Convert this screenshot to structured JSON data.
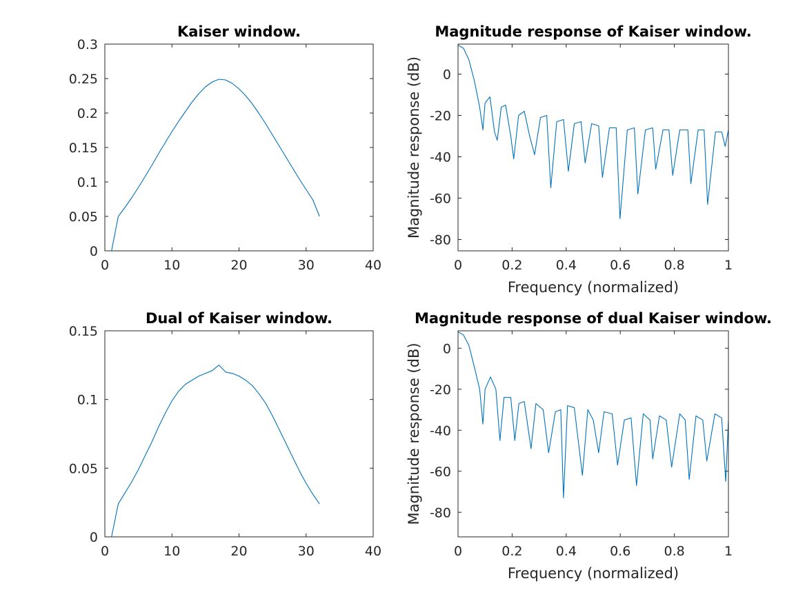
{
  "chart_data": [
    {
      "type": "line",
      "title": "Kaiser window.",
      "xlabel": "",
      "ylabel": "",
      "xlim": [
        0,
        40
      ],
      "ylim": [
        0,
        0.3
      ],
      "xticks": [
        0,
        10,
        20,
        30,
        40
      ],
      "xtick_labels": [
        "0",
        "10",
        "20",
        "30",
        "40"
      ],
      "yticks": [
        0,
        0.05,
        0.1,
        0.15,
        0.2,
        0.25,
        0.3
      ],
      "ytick_labels": [
        "0",
        "0.05",
        "0.1",
        "0.15",
        "0.2",
        "0.25",
        "0.3"
      ],
      "grid": false,
      "color": "#0072bd",
      "series": [
        {
          "x": [
            1,
            2,
            3,
            4,
            5,
            6,
            7,
            8,
            9,
            10,
            11,
            12,
            13,
            14,
            15,
            16,
            17,
            18,
            19,
            20,
            21,
            22,
            23,
            24,
            25,
            26,
            27,
            28,
            29,
            30,
            31,
            32
          ],
          "y": [
            0,
            0.05,
            0.063,
            0.077,
            0.092,
            0.108,
            0.124,
            0.141,
            0.157,
            0.173,
            0.188,
            0.202,
            0.216,
            0.228,
            0.238,
            0.245,
            0.249,
            0.248,
            0.243,
            0.235,
            0.225,
            0.213,
            0.199,
            0.184,
            0.168,
            0.152,
            0.136,
            0.12,
            0.104,
            0.089,
            0.074,
            0.05
          ]
        }
      ]
    },
    {
      "type": "line",
      "title": "Magnitude response of Kaiser window.",
      "xlabel": "Frequency (normalized)",
      "ylabel": "Magnitude response (dB)",
      "xlim": [
        0,
        1
      ],
      "ylim": [
        -85.5,
        14.5
      ],
      "xticks": [
        0,
        0.2,
        0.4,
        0.6,
        0.8,
        1
      ],
      "xtick_labels": [
        "0",
        "0.2",
        "0.4",
        "0.6",
        "0.8",
        "1"
      ],
      "yticks": [
        -80,
        -60,
        -40,
        -20,
        0
      ],
      "ytick_labels": [
        "-80",
        "-60",
        "-40",
        "-20",
        "0"
      ],
      "grid": false,
      "color": "#0072bd",
      "series": [
        {
          "x": [
            0,
            0.02,
            0.04,
            0.06,
            0.08,
            0.092,
            0.1,
            0.118,
            0.135,
            0.145,
            0.16,
            0.176,
            0.195,
            0.206,
            0.224,
            0.245,
            0.265,
            0.283,
            0.305,
            0.328,
            0.343,
            0.365,
            0.39,
            0.408,
            0.43,
            0.455,
            0.47,
            0.494,
            0.52,
            0.534,
            0.56,
            0.585,
            0.599,
            0.626,
            0.652,
            0.665,
            0.693,
            0.72,
            0.731,
            0.758,
            0.78,
            0.794,
            0.82,
            0.85,
            0.861,
            0.888,
            0.91,
            0.923,
            0.952,
            0.975,
            0.988,
            1.0
          ],
          "y": [
            14,
            12.5,
            7,
            -3,
            -16,
            -27,
            -14,
            -11,
            -28,
            -32,
            -16,
            -15,
            -30,
            -41,
            -20,
            -18,
            -30,
            -39,
            -21,
            -20,
            -55,
            -23,
            -22,
            -47,
            -24,
            -23,
            -43,
            -24,
            -25,
            -50,
            -26,
            -26,
            -70,
            -27,
            -26,
            -58,
            -27,
            -26,
            -46,
            -27,
            -27,
            -49,
            -27,
            -27,
            -53,
            -27,
            -27,
            -63,
            -28,
            -28,
            -35,
            -27
          ]
        }
      ]
    },
    {
      "type": "line",
      "title": "Dual of Kaiser window.",
      "xlabel": "",
      "ylabel": "",
      "xlim": [
        0,
        40
      ],
      "ylim": [
        0,
        0.15
      ],
      "xticks": [
        0,
        10,
        20,
        30,
        40
      ],
      "xtick_labels": [
        "0",
        "10",
        "20",
        "30",
        "40"
      ],
      "yticks": [
        0,
        0.05,
        0.1,
        0.15
      ],
      "ytick_labels": [
        "0",
        "0.05",
        "0.1",
        "0.15"
      ],
      "grid": false,
      "color": "#0072bd",
      "series": [
        {
          "x": [
            1,
            2,
            3,
            4,
            5,
            6,
            7,
            8,
            9,
            10,
            11,
            12,
            13,
            14,
            15,
            16,
            17,
            18,
            19,
            20,
            21,
            22,
            23,
            24,
            25,
            26,
            27,
            28,
            29,
            30,
            31,
            32
          ],
          "y": [
            0,
            0.024,
            0.032,
            0.04,
            0.049,
            0.059,
            0.069,
            0.08,
            0.09,
            0.099,
            0.106,
            0.111,
            0.114,
            0.117,
            0.119,
            0.121,
            0.125,
            0.12,
            0.119,
            0.117,
            0.114,
            0.11,
            0.104,
            0.097,
            0.088,
            0.078,
            0.068,
            0.058,
            0.048,
            0.039,
            0.031,
            0.024
          ]
        }
      ]
    },
    {
      "type": "line",
      "title": "Magnitude response of dual Kaiser window.",
      "xlabel": "Frequency (normalized)",
      "ylabel": "Magnitude response (dB)",
      "xlim": [
        0,
        1
      ],
      "ylim": [
        -92,
        8.5
      ],
      "xticks": [
        0,
        0.2,
        0.4,
        0.6,
        0.8,
        1
      ],
      "xtick_labels": [
        "0",
        "0.2",
        "0.4",
        "0.6",
        "0.8",
        "1"
      ],
      "yticks": [
        -80,
        -60,
        -40,
        -20,
        0
      ],
      "ytick_labels": [
        "-80",
        "-60",
        "-40",
        "-20",
        "0"
      ],
      "grid": false,
      "color": "#0072bd",
      "series": [
        {
          "x": [
            0,
            0.02,
            0.04,
            0.06,
            0.08,
            0.092,
            0.1,
            0.12,
            0.14,
            0.155,
            0.17,
            0.195,
            0.21,
            0.225,
            0.245,
            0.27,
            0.288,
            0.315,
            0.335,
            0.36,
            0.38,
            0.39,
            0.405,
            0.43,
            0.46,
            0.48,
            0.5,
            0.52,
            0.54,
            0.57,
            0.59,
            0.615,
            0.64,
            0.66,
            0.685,
            0.71,
            0.72,
            0.745,
            0.77,
            0.79,
            0.82,
            0.84,
            0.855,
            0.88,
            0.905,
            0.92,
            0.95,
            0.975,
            0.99,
            1.0
          ],
          "y": [
            8,
            6.5,
            1.5,
            -9,
            -20,
            -37,
            -20,
            -14,
            -20,
            -45,
            -24,
            -24,
            -45,
            -27,
            -26,
            -49,
            -27,
            -30,
            -51,
            -31,
            -30,
            -73,
            -28,
            -29,
            -62,
            -30,
            -35,
            -51,
            -31,
            -32,
            -57,
            -35,
            -34,
            -67,
            -32,
            -35,
            -54,
            -33,
            -35,
            -58,
            -32,
            -35,
            -64,
            -33,
            -35,
            -55,
            -32,
            -34,
            -65,
            -35
          ]
        }
      ]
    }
  ]
}
